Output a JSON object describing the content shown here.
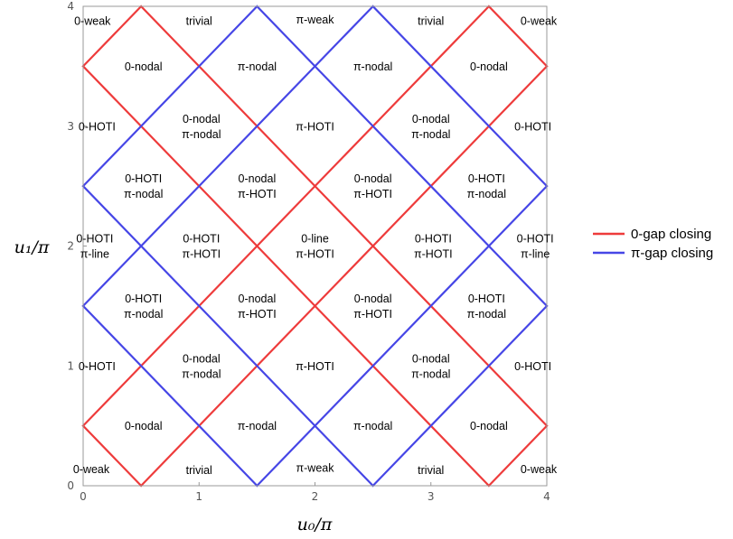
{
  "chart_data": {
    "type": "phase-diagram",
    "xlabel": "u₀/π",
    "ylabel": "u₁/π",
    "xlim": [
      0,
      4
    ],
    "ylim": [
      0,
      4
    ],
    "xticks": [
      "0",
      "1",
      "2",
      "3",
      "4"
    ],
    "yticks": [
      "0",
      "1",
      "2",
      "3",
      "4"
    ],
    "colors": {
      "zero_gap": "#ee3b3b",
      "pi_gap": "#4646e6",
      "frame": "#999999"
    },
    "legend": [
      {
        "label": "0-gap closing",
        "color": "#ee3b3b"
      },
      {
        "label": "π-gap closing",
        "color": "#4646e6"
      }
    ],
    "series": [
      {
        "label": "0-gap closing",
        "lines": [
          {
            "x": [
              0,
              0.5
            ],
            "y": [
              3.5,
              4
            ]
          },
          {
            "x": [
              0,
              3.5
            ],
            "y": [
              3.5,
              0
            ]
          },
          {
            "x": [
              0,
              0.5
            ],
            "y": [
              0.5,
              0
            ]
          },
          {
            "x": [
              0,
              3.5
            ],
            "y": [
              0.5,
              4
            ]
          },
          {
            "x": [
              3.5,
              4
            ],
            "y": [
              4,
              3.5
            ]
          },
          {
            "x": [
              0.5,
              4
            ],
            "y": [
              4,
              0.5
            ]
          },
          {
            "x": [
              0.5,
              4
            ],
            "y": [
              0,
              3.5
            ]
          },
          {
            "x": [
              3.5,
              4
            ],
            "y": [
              0,
              0.5
            ]
          }
        ]
      },
      {
        "label": "π-gap closing",
        "lines": [
          {
            "x": [
              0,
              1.5
            ],
            "y": [
              2.5,
              4
            ]
          },
          {
            "x": [
              0,
              2.5
            ],
            "y": [
              2.5,
              0
            ]
          },
          {
            "x": [
              0,
              1.5
            ],
            "y": [
              1.5,
              0
            ]
          },
          {
            "x": [
              0,
              2.5
            ],
            "y": [
              1.5,
              4
            ]
          },
          {
            "x": [
              1.5,
              4
            ],
            "y": [
              4,
              1.5
            ]
          },
          {
            "x": [
              2.5,
              4
            ],
            "y": [
              4,
              2.5
            ]
          },
          {
            "x": [
              1.5,
              4
            ],
            "y": [
              0,
              2.5
            ]
          },
          {
            "x": [
              2.5,
              4
            ],
            "y": [
              0,
              1.5
            ]
          }
        ]
      }
    ],
    "regions": [
      {
        "x": 0.08,
        "y": 3.88,
        "lines": [
          "0-weak"
        ]
      },
      {
        "x": 1.0,
        "y": 3.88,
        "lines": [
          "trivial"
        ]
      },
      {
        "x": 2.0,
        "y": 3.89,
        "lines": [
          "π-weak"
        ]
      },
      {
        "x": 3.0,
        "y": 3.88,
        "lines": [
          "trivial"
        ]
      },
      {
        "x": 3.93,
        "y": 3.88,
        "lines": [
          "0-weak"
        ]
      },
      {
        "x": 0.52,
        "y": 3.5,
        "lines": [
          "0-nodal"
        ]
      },
      {
        "x": 1.5,
        "y": 3.5,
        "lines": [
          "π-nodal"
        ]
      },
      {
        "x": 2.5,
        "y": 3.5,
        "lines": [
          "π-nodal"
        ]
      },
      {
        "x": 3.5,
        "y": 3.5,
        "lines": [
          "0-nodal"
        ]
      },
      {
        "x": 0.12,
        "y": 3.0,
        "lines": [
          "0-HOTI"
        ]
      },
      {
        "x": 1.02,
        "y": 3.0,
        "lines": [
          "0-nodal",
          "π-nodal"
        ]
      },
      {
        "x": 2.0,
        "y": 3.0,
        "lines": [
          "π-HOTI"
        ]
      },
      {
        "x": 3.0,
        "y": 3.0,
        "lines": [
          "0-nodal",
          "π-nodal"
        ]
      },
      {
        "x": 3.88,
        "y": 3.0,
        "lines": [
          "0-HOTI"
        ]
      },
      {
        "x": 0.52,
        "y": 2.5,
        "lines": [
          "0-HOTI",
          "π-nodal"
        ]
      },
      {
        "x": 1.5,
        "y": 2.5,
        "lines": [
          "0-nodal",
          "π-HOTI"
        ]
      },
      {
        "x": 2.5,
        "y": 2.5,
        "lines": [
          "0-nodal",
          "π-HOTI"
        ]
      },
      {
        "x": 3.48,
        "y": 2.5,
        "lines": [
          "0-HOTI",
          "π-nodal"
        ]
      },
      {
        "x": 0.1,
        "y": 2.0,
        "lines": [
          "0-HOTI",
          "π-line"
        ]
      },
      {
        "x": 1.02,
        "y": 2.0,
        "lines": [
          "0-HOTI",
          "π-HOTI"
        ]
      },
      {
        "x": 2.0,
        "y": 2.0,
        "lines": [
          "0-line",
          "π-HOTI"
        ]
      },
      {
        "x": 3.02,
        "y": 2.0,
        "lines": [
          "0-HOTI",
          "π-HOTI"
        ]
      },
      {
        "x": 3.9,
        "y": 2.0,
        "lines": [
          "0-HOTI",
          "π-line"
        ]
      },
      {
        "x": 0.52,
        "y": 1.5,
        "lines": [
          "0-HOTI",
          "π-nodal"
        ]
      },
      {
        "x": 1.5,
        "y": 1.5,
        "lines": [
          "0-nodal",
          "π-HOTI"
        ]
      },
      {
        "x": 2.5,
        "y": 1.5,
        "lines": [
          "0-nodal",
          "π-HOTI"
        ]
      },
      {
        "x": 3.48,
        "y": 1.5,
        "lines": [
          "0-HOTI",
          "π-nodal"
        ]
      },
      {
        "x": 0.12,
        "y": 1.0,
        "lines": [
          "0-HOTI"
        ]
      },
      {
        "x": 1.02,
        "y": 1.0,
        "lines": [
          "0-nodal",
          "π-nodal"
        ]
      },
      {
        "x": 2.0,
        "y": 1.0,
        "lines": [
          "π-HOTI"
        ]
      },
      {
        "x": 3.0,
        "y": 1.0,
        "lines": [
          "0-nodal",
          "π-nodal"
        ]
      },
      {
        "x": 3.88,
        "y": 1.0,
        "lines": [
          "0-HOTI"
        ]
      },
      {
        "x": 0.52,
        "y": 0.5,
        "lines": [
          "0-nodal"
        ]
      },
      {
        "x": 1.5,
        "y": 0.5,
        "lines": [
          "π-nodal"
        ]
      },
      {
        "x": 2.5,
        "y": 0.5,
        "lines": [
          "π-nodal"
        ]
      },
      {
        "x": 3.5,
        "y": 0.5,
        "lines": [
          "0-nodal"
        ]
      },
      {
        "x": 0.07,
        "y": 0.14,
        "lines": [
          "0-weak"
        ]
      },
      {
        "x": 1.0,
        "y": 0.13,
        "lines": [
          "trivial"
        ]
      },
      {
        "x": 2.0,
        "y": 0.15,
        "lines": [
          "π-weak"
        ]
      },
      {
        "x": 3.0,
        "y": 0.13,
        "lines": [
          "trivial"
        ]
      },
      {
        "x": 3.93,
        "y": 0.14,
        "lines": [
          "0-weak"
        ]
      }
    ]
  }
}
